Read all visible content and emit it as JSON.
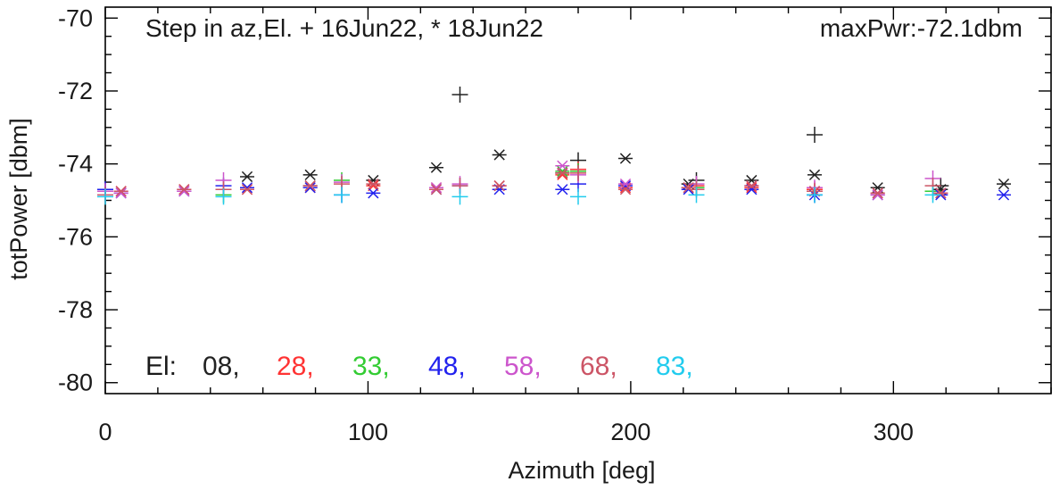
{
  "chart_data": {
    "type": "scatter",
    "title": "Step in az,El. + 16Jun22, * 18Jun22",
    "annotation": "maxPwr:-72.1dbm",
    "xlabel": "Azimuth [deg]",
    "ylabel": "totPower [dbm]",
    "xlim": [
      0,
      360
    ],
    "ylim": [
      -80.3,
      -69.7
    ],
    "xticks": [
      0,
      100,
      200,
      300
    ],
    "yticks": [
      -80,
      -78,
      -76,
      -74,
      -72,
      -70
    ],
    "grid": false,
    "marker_legend": {
      "+": "16Jun22",
      "*": "18Jun22"
    },
    "legend": {
      "prefix": "El:",
      "entries": [
        {
          "label": "08,",
          "color": "#222222"
        },
        {
          "label": "28,",
          "color": "#ff3333"
        },
        {
          "label": "33,",
          "color": "#33cc33"
        },
        {
          "label": "48,",
          "color": "#2222ee"
        },
        {
          "label": "58,",
          "color": "#cc55cc"
        },
        {
          "label": "68,",
          "color": "#cc5566"
        },
        {
          "label": "83,",
          "color": "#22ccee"
        }
      ]
    },
    "series": [
      {
        "name": "08",
        "color": "#222222",
        "plus": [
          [
            135,
            -72.1
          ],
          [
            180,
            -73.9
          ],
          [
            225,
            -74.45
          ],
          [
            270,
            -73.2
          ],
          [
            318,
            -74.6
          ]
        ],
        "star": [
          [
            54,
            -74.35
          ],
          [
            78,
            -74.3
          ],
          [
            102,
            -74.45
          ],
          [
            126,
            -74.1
          ],
          [
            150,
            -73.75
          ],
          [
            174,
            -74.25
          ],
          [
            198,
            -73.85
          ],
          [
            222,
            -74.55
          ],
          [
            246,
            -74.45
          ],
          [
            270,
            -74.3
          ],
          [
            294,
            -74.65
          ],
          [
            318,
            -74.7
          ],
          [
            342,
            -74.55
          ]
        ]
      },
      {
        "name": "28",
        "color": "#ff3333",
        "plus": [
          [
            180,
            -74.15
          ],
          [
            225,
            -74.6
          ],
          [
            270,
            -74.7
          ]
        ],
        "star": [
          [
            6,
            -74.75
          ],
          [
            30,
            -74.7
          ],
          [
            54,
            -74.7
          ],
          [
            78,
            -74.65
          ],
          [
            102,
            -74.6
          ],
          [
            126,
            -74.65
          ],
          [
            150,
            -74.6
          ],
          [
            174,
            -74.3
          ],
          [
            198,
            -74.65
          ],
          [
            222,
            -74.65
          ],
          [
            246,
            -74.65
          ],
          [
            270,
            -74.75
          ],
          [
            294,
            -74.8
          ],
          [
            318,
            -74.8
          ]
        ]
      },
      {
        "name": "33",
        "color": "#33cc33",
        "plus": [
          [
            45,
            -74.85
          ],
          [
            90,
            -74.45
          ],
          [
            180,
            -74.2
          ],
          [
            225,
            -74.65
          ],
          [
            315,
            -74.75
          ]
        ],
        "star": [
          [
            78,
            -74.6
          ],
          [
            174,
            -74.2
          ]
        ]
      },
      {
        "name": "48",
        "color": "#2222ee",
        "plus": [
          [
            0,
            -74.7
          ],
          [
            45,
            -74.6
          ],
          [
            90,
            -74.85
          ],
          [
            135,
            -74.6
          ],
          [
            180,
            -74.55
          ],
          [
            270,
            -74.85
          ]
        ],
        "star": [
          [
            6,
            -74.8
          ],
          [
            30,
            -74.75
          ],
          [
            54,
            -74.65
          ],
          [
            78,
            -74.65
          ],
          [
            102,
            -74.8
          ],
          [
            126,
            -74.7
          ],
          [
            150,
            -74.7
          ],
          [
            174,
            -74.7
          ],
          [
            198,
            -74.6
          ],
          [
            222,
            -74.7
          ],
          [
            246,
            -74.7
          ],
          [
            270,
            -74.85
          ],
          [
            294,
            -74.85
          ],
          [
            318,
            -74.85
          ],
          [
            342,
            -74.85
          ]
        ]
      },
      {
        "name": "58",
        "color": "#cc55cc",
        "plus": [
          [
            0,
            -74.75
          ],
          [
            45,
            -74.45
          ],
          [
            90,
            -74.5
          ],
          [
            135,
            -74.55
          ],
          [
            180,
            -74.3
          ],
          [
            225,
            -74.55
          ],
          [
            270,
            -74.65
          ],
          [
            315,
            -74.4
          ]
        ],
        "star": [
          [
            6,
            -74.8
          ],
          [
            30,
            -74.75
          ],
          [
            78,
            -74.6
          ],
          [
            126,
            -74.65
          ],
          [
            174,
            -74.05
          ],
          [
            198,
            -74.55
          ],
          [
            246,
            -74.6
          ],
          [
            294,
            -74.85
          ],
          [
            318,
            -74.8
          ]
        ]
      },
      {
        "name": "68",
        "color": "#cc5566",
        "plus": [
          [
            0,
            -74.85
          ],
          [
            45,
            -74.7
          ],
          [
            90,
            -74.55
          ],
          [
            135,
            -74.6
          ],
          [
            180,
            -74.25
          ],
          [
            225,
            -74.7
          ],
          [
            270,
            -74.75
          ],
          [
            315,
            -74.6
          ]
        ],
        "star": [
          [
            6,
            -74.75
          ],
          [
            30,
            -74.7
          ],
          [
            54,
            -74.7
          ],
          [
            78,
            -74.6
          ],
          [
            102,
            -74.55
          ],
          [
            126,
            -74.7
          ],
          [
            150,
            -74.6
          ],
          [
            174,
            -74.25
          ],
          [
            198,
            -74.7
          ],
          [
            222,
            -74.65
          ],
          [
            246,
            -74.6
          ],
          [
            270,
            -74.75
          ],
          [
            294,
            -74.8
          ],
          [
            318,
            -74.8
          ]
        ]
      },
      {
        "name": "83",
        "color": "#22ccee",
        "plus": [
          [
            0,
            -74.9
          ],
          [
            45,
            -74.9
          ],
          [
            90,
            -74.85
          ],
          [
            135,
            -74.9
          ],
          [
            180,
            -74.9
          ],
          [
            225,
            -74.85
          ],
          [
            270,
            -74.85
          ],
          [
            315,
            -74.85
          ]
        ],
        "star": []
      }
    ]
  }
}
